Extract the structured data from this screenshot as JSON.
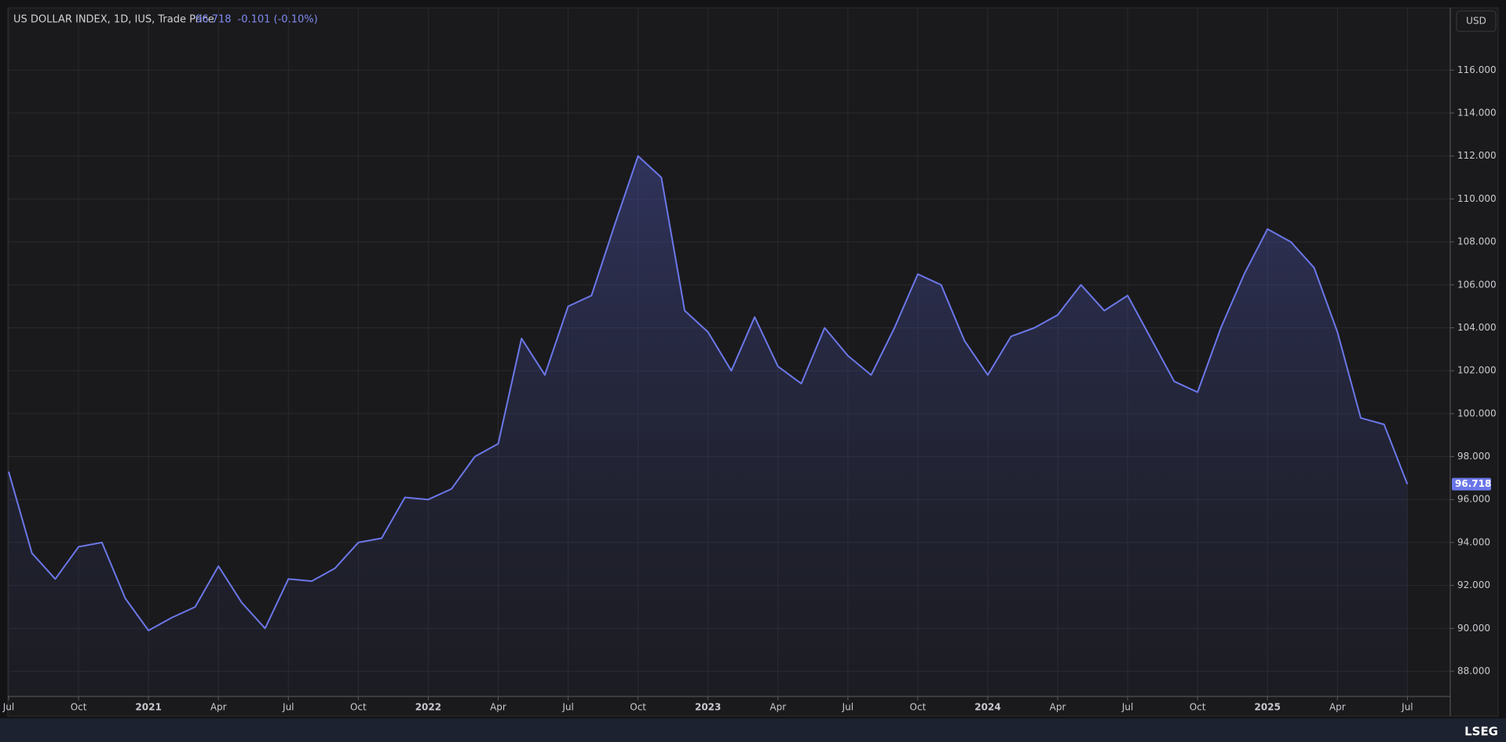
{
  "header": {
    "instrument": "US DOLLAR INDEX, 1D, IUS, Trade Price",
    "price": "96.718",
    "change": "-0.101 (-0.10%)",
    "currency": "USD",
    "logo": "LSEG"
  },
  "chart_data": {
    "type": "area",
    "x": [
      "2020-07",
      "2020-08",
      "2020-09",
      "2020-10",
      "2020-11",
      "2020-12",
      "2021-01",
      "2021-02",
      "2021-03",
      "2021-04",
      "2021-05",
      "2021-06",
      "2021-07",
      "2021-08",
      "2021-09",
      "2021-10",
      "2021-11",
      "2021-12",
      "2022-01",
      "2022-02",
      "2022-03",
      "2022-04",
      "2022-05",
      "2022-06",
      "2022-07",
      "2022-08",
      "2022-09",
      "2022-10",
      "2022-11",
      "2022-12",
      "2023-01",
      "2023-02",
      "2023-03",
      "2023-04",
      "2023-05",
      "2023-06",
      "2023-07",
      "2023-08",
      "2023-09",
      "2023-10",
      "2023-11",
      "2023-12",
      "2024-01",
      "2024-02",
      "2024-03",
      "2024-04",
      "2024-05",
      "2024-06",
      "2024-07",
      "2024-08",
      "2024-09",
      "2024-10",
      "2024-11",
      "2024-12",
      "2025-01",
      "2025-02",
      "2025-03",
      "2025-04",
      "2025-05",
      "2025-06",
      "2025-07"
    ],
    "series": [
      {
        "name": "US DOLLAR INDEX",
        "color": "#6b77e8",
        "values": [
          97.3,
          93.5,
          92.3,
          93.8,
          94.0,
          91.4,
          89.9,
          90.5,
          91.0,
          92.9,
          91.2,
          90.0,
          92.3,
          92.2,
          92.8,
          94.0,
          94.2,
          96.1,
          96.0,
          96.5,
          98.0,
          98.6,
          103.5,
          101.8,
          105.0,
          105.5,
          108.8,
          112.0,
          111.0,
          104.8,
          103.8,
          102.0,
          104.5,
          102.2,
          101.4,
          104.0,
          102.7,
          101.8,
          104.0,
          106.5,
          106.0,
          103.4,
          101.8,
          103.6,
          104.0,
          104.6,
          106.0,
          104.8,
          105.5,
          103.5,
          101.5,
          101.0,
          104.0,
          106.5,
          108.6,
          108.0,
          106.8,
          103.8,
          99.8,
          99.5,
          96.718
        ]
      }
    ],
    "ylim": [
      86.83,
      118.9
    ],
    "yticks": [
      {
        "value": 88,
        "label": "88.000"
      },
      {
        "value": 90,
        "label": "90.000"
      },
      {
        "value": 92,
        "label": "92.000"
      },
      {
        "value": 94,
        "label": "94.000"
      },
      {
        "value": 96,
        "label": "96.000"
      },
      {
        "value": 98,
        "label": "98.000"
      },
      {
        "value": 100,
        "label": "100.000"
      },
      {
        "value": 102,
        "label": "102.000"
      },
      {
        "value": 104,
        "label": "104.000"
      },
      {
        "value": 106,
        "label": "106.000"
      },
      {
        "value": 108,
        "label": "108.000"
      },
      {
        "value": 110,
        "label": "110.000"
      },
      {
        "value": 112,
        "label": "112.000"
      },
      {
        "value": 114,
        "label": "114.000"
      },
      {
        "value": 116,
        "label": "116.000"
      }
    ],
    "xticks": [
      {
        "value": "2020-07",
        "label": "Jul"
      },
      {
        "value": "2020-10",
        "label": "Oct"
      },
      {
        "value": "2021-01",
        "label": "2021"
      },
      {
        "value": "2021-04",
        "label": "Apr"
      },
      {
        "value": "2021-07",
        "label": "Jul"
      },
      {
        "value": "2021-10",
        "label": "Oct"
      },
      {
        "value": "2022-01",
        "label": "2022"
      },
      {
        "value": "2022-04",
        "label": "Apr"
      },
      {
        "value": "2022-07",
        "label": "Jul"
      },
      {
        "value": "2022-10",
        "label": "Oct"
      },
      {
        "value": "2023-01",
        "label": "2023"
      },
      {
        "value": "2023-04",
        "label": "Apr"
      },
      {
        "value": "2023-07",
        "label": "Jul"
      },
      {
        "value": "2023-10",
        "label": "Oct"
      },
      {
        "value": "2024-01",
        "label": "2024"
      },
      {
        "value": "2024-04",
        "label": "Apr"
      },
      {
        "value": "2024-07",
        "label": "Jul"
      },
      {
        "value": "2024-10",
        "label": "Oct"
      },
      {
        "value": "2025-01",
        "label": "2025"
      },
      {
        "value": "2025-04",
        "label": "Apr"
      },
      {
        "value": "2025-07",
        "label": "Jul"
      }
    ],
    "grid": true
  }
}
